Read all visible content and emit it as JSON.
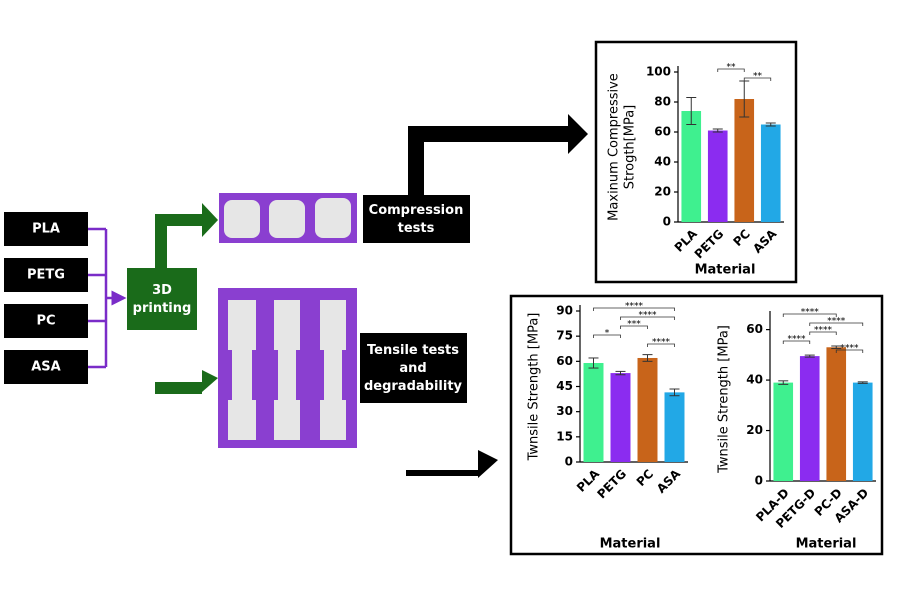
{
  "diagram": {
    "materials": [
      "PLA",
      "PETG",
      "PC",
      "ASA"
    ],
    "printing": "3D printing",
    "compression": "Compression tests",
    "tensile": "Tensile tests and degradability"
  },
  "chart_data": [
    {
      "type": "bar",
      "ylabel": [
        "Maxinum Compressive",
        "Strogth[MPa]"
      ],
      "xlabel": "Material",
      "categories": [
        "PLA",
        "PETG",
        "PC",
        "ASA"
      ],
      "values": [
        74,
        61,
        82,
        65
      ],
      "errors": [
        9,
        1,
        12,
        1
      ],
      "colors": [
        "#3ff08f",
        "#8b2cf0",
        "#c8641a",
        "#22a8e6"
      ],
      "ylim": [
        0,
        100
      ],
      "yticks": [
        0,
        20,
        40,
        60,
        80,
        100
      ],
      "brackets": [
        {
          "from": 1,
          "to": 2,
          "label": "**"
        },
        {
          "from": 2,
          "to": 3,
          "label": "**"
        }
      ]
    },
    {
      "type": "bar",
      "ylabel": [
        "Twnsile Strength [MPa]"
      ],
      "xlabel": "Material",
      "categories": [
        "PLA",
        "PETG",
        "PC",
        "ASA"
      ],
      "values": [
        59,
        53,
        62,
        41.5
      ],
      "errors": [
        3,
        1,
        2,
        2
      ],
      "colors": [
        "#3ff08f",
        "#8b2cf0",
        "#c8641a",
        "#22a8e6"
      ],
      "ylim": [
        0,
        90
      ],
      "yticks": [
        0,
        15,
        30,
        45,
        60,
        75,
        90
      ],
      "brackets": [
        {
          "from": 0,
          "to": 3,
          "label": "****"
        },
        {
          "from": 1,
          "to": 3,
          "label": "****"
        },
        {
          "from": 1,
          "to": 2,
          "label": "***"
        },
        {
          "from": 0,
          "to": 1,
          "label": "*"
        },
        {
          "from": 2,
          "to": 3,
          "label": "****"
        }
      ]
    },
    {
      "type": "bar",
      "ylabel": [
        "Twnsile Strength [MPa]"
      ],
      "xlabel": "Material",
      "categories": [
        "PLA-D",
        "PETG-D",
        "PC-D",
        "ASA-D"
      ],
      "values": [
        39,
        49.5,
        53,
        39
      ],
      "errors": [
        0.7,
        0.4,
        0.5,
        0.3
      ],
      "colors": [
        "#3ff08f",
        "#8b2cf0",
        "#c8641a",
        "#22a8e6"
      ],
      "ylim": [
        0,
        65
      ],
      "yticks": [
        0,
        20,
        40,
        60
      ],
      "brackets": [
        {
          "from": 0,
          "to": 2,
          "label": "****"
        },
        {
          "from": 1,
          "to": 3,
          "label": "****"
        },
        {
          "from": 1,
          "to": 2,
          "label": "****"
        },
        {
          "from": 0,
          "to": 1,
          "label": "****"
        },
        {
          "from": 2,
          "to": 3,
          "label": "****"
        }
      ]
    }
  ]
}
